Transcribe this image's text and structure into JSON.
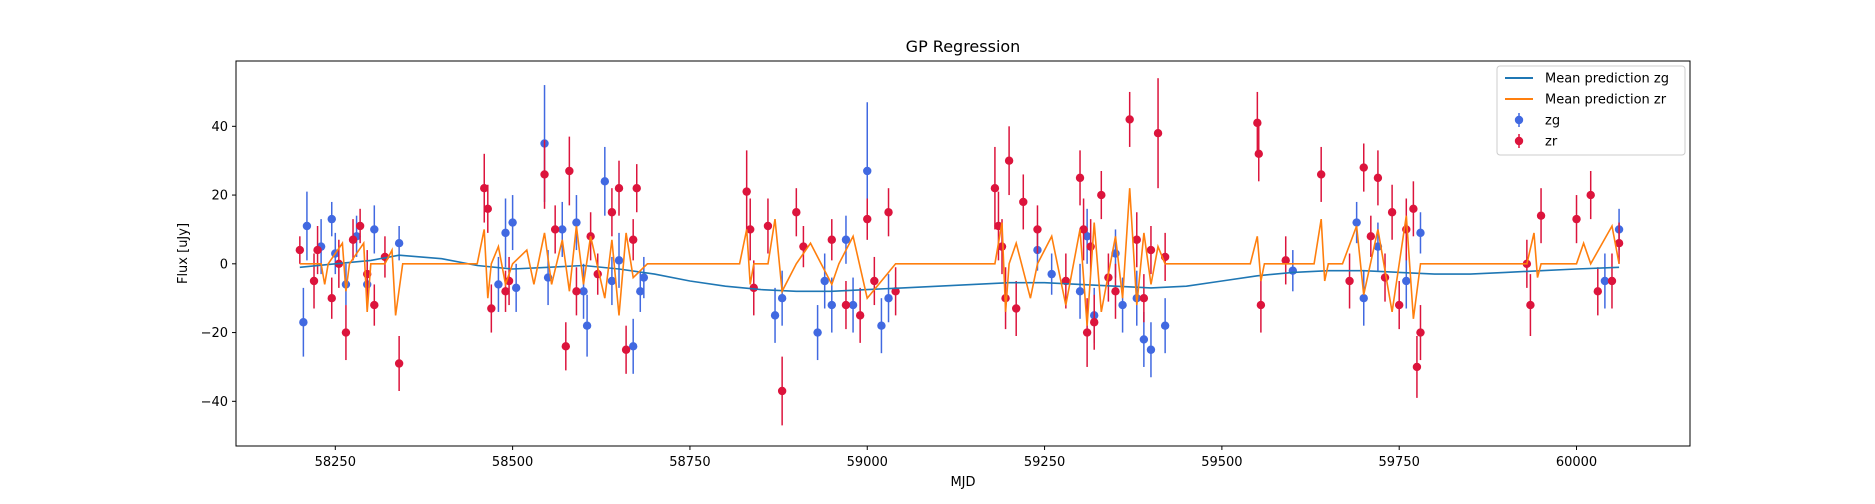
{
  "chart_data": {
    "type": "scatter",
    "title": "GP Regression",
    "xlabel": "MJD",
    "ylabel": "Flux [uJy]",
    "xlim": [
      58110,
      60160
    ],
    "ylim": [
      -53,
      59
    ],
    "xticks": [
      58250,
      58500,
      58750,
      59000,
      59250,
      59500,
      59750,
      60000
    ],
    "yticks": [
      -40,
      -20,
      0,
      20,
      40
    ],
    "grid": false,
    "legend_position": "upper right",
    "legend": [
      {
        "label": "Mean prediction zg",
        "kind": "line",
        "color": "#1f77b4"
      },
      {
        "label": "Mean prediction zr",
        "kind": "line",
        "color": "#ff7f0e"
      },
      {
        "label": "zg",
        "kind": "errorbar",
        "color": "#4169e1"
      },
      {
        "label": "zr",
        "kind": "errorbar",
        "color": "#dc143c"
      }
    ],
    "series": [
      {
        "name": "Mean prediction zg",
        "kind": "line",
        "color": "#1f77b4",
        "x": [
          58200,
          58250,
          58300,
          58340,
          58400,
          58450,
          58500,
          58550,
          58600,
          58650,
          58700,
          58750,
          58800,
          58850,
          58900,
          58950,
          59000,
          59050,
          59100,
          59150,
          59200,
          59250,
          59300,
          59350,
          59400,
          59450,
          59500,
          59550,
          59600,
          59650,
          59700,
          59750,
          59800,
          59850,
          59900,
          59950,
          60000,
          60060
        ],
        "y": [
          -1,
          0,
          1,
          2.5,
          1.5,
          -0.5,
          -1.5,
          -1,
          -0.5,
          -1.5,
          -3,
          -5,
          -6.5,
          -7.5,
          -8,
          -8,
          -7.5,
          -7,
          -6.5,
          -6,
          -5.5,
          -5.5,
          -6,
          -6.5,
          -7,
          -6.5,
          -5,
          -3.5,
          -2.5,
          -2,
          -2,
          -2.5,
          -3,
          -3,
          -2.5,
          -2,
          -1.5,
          -1
        ]
      },
      {
        "name": "Mean prediction zr",
        "kind": "line",
        "color": "#ff7f0e",
        "x": [
          58200,
          58230,
          58235,
          58240,
          58260,
          58265,
          58270,
          58290,
          58295,
          58300,
          58320,
          58330,
          58335,
          58345,
          58450,
          58460,
          58465,
          58470,
          58480,
          58490,
          58500,
          58520,
          58530,
          58545,
          58555,
          58570,
          58580,
          58590,
          58600,
          58610,
          58630,
          58640,
          58650,
          58660,
          58670,
          58690,
          58820,
          58830,
          58835,
          58840,
          58860,
          58870,
          58880,
          58900,
          58920,
          58950,
          58960,
          58980,
          59000,
          59040,
          59180,
          59190,
          59195,
          59200,
          59210,
          59230,
          59240,
          59260,
          59280,
          59300,
          59310,
          59320,
          59330,
          59350,
          59360,
          59370,
          59380,
          59390,
          59400,
          59410,
          59420,
          59540,
          59550,
          59555,
          59560,
          59630,
          59640,
          59645,
          59650,
          59670,
          59690,
          59700,
          59720,
          59740,
          59760,
          59770,
          59780,
          59930,
          59940,
          59945,
          59950,
          60000,
          60010,
          60020,
          60050,
          60060
        ],
        "y": [
          0,
          0,
          -6,
          0,
          6,
          -8,
          0,
          6,
          -14,
          0,
          0,
          4,
          -15,
          0,
          0,
          10,
          -10,
          0,
          5,
          -6,
          0,
          4,
          -6,
          9,
          -6,
          7,
          -8,
          11,
          -6,
          8,
          -10,
          7,
          -15,
          9,
          -4,
          0,
          0,
          10,
          -6,
          0,
          0,
          13,
          -8,
          0,
          6,
          -6,
          0,
          8,
          -10,
          0,
          0,
          12,
          -14,
          0,
          6,
          -10,
          0,
          8,
          -12,
          10,
          -18,
          12,
          -14,
          8,
          -10,
          22,
          -12,
          9,
          -6,
          5,
          0,
          0,
          8,
          -5,
          0,
          0,
          13,
          -5,
          0,
          0,
          11,
          -9,
          10,
          -14,
          14,
          -16,
          0,
          0,
          9,
          -4,
          0,
          0,
          6,
          0,
          11,
          0
        ]
      },
      {
        "name": "zg",
        "kind": "errorbar",
        "color": "#4169e1",
        "x": [
          58205,
          58210,
          58230,
          58245,
          58250,
          58265,
          58280,
          58295,
          58305,
          58340,
          58480,
          58490,
          58500,
          58505,
          58545,
          58550,
          58570,
          58590,
          58600,
          58605,
          58630,
          58640,
          58650,
          58670,
          58680,
          58685,
          58870,
          58880,
          58930,
          58940,
          58950,
          58970,
          58980,
          59000,
          59020,
          59030,
          59240,
          59260,
          59300,
          59310,
          59320,
          59350,
          59360,
          59380,
          59390,
          59400,
          59420,
          59600,
          59690,
          59700,
          59720,
          59760,
          59780,
          60040,
          60060
        ],
        "y": [
          -17,
          11,
          5,
          13,
          3,
          -6,
          8,
          -6,
          10,
          6,
          -6,
          9,
          12,
          -7,
          35,
          -4,
          10,
          12,
          -8,
          -18,
          24,
          -5,
          1,
          -24,
          -8,
          -4,
          -15,
          -10,
          -20,
          -5,
          -12,
          7,
          -12,
          27,
          -18,
          -10,
          4,
          -3,
          -8,
          8,
          -15,
          3,
          -12,
          -10,
          -22,
          -25,
          -18,
          -2,
          12,
          -10,
          5,
          -5,
          9,
          -5,
          10
        ],
        "yerr": [
          10,
          10,
          8,
          5,
          6,
          6,
          6,
          7,
          7,
          5,
          8,
          10,
          8,
          7,
          17,
          8,
          8,
          8,
          8,
          9,
          10,
          7,
          8,
          8,
          6,
          6,
          8,
          8,
          8,
          8,
          8,
          7,
          8,
          20,
          8,
          7,
          6,
          6,
          8,
          8,
          8,
          7,
          8,
          8,
          8,
          8,
          8,
          6,
          6,
          8,
          7,
          8,
          6,
          8,
          6
        ]
      },
      {
        "name": "zr",
        "kind": "errorbar",
        "color": "#dc143c",
        "x": [
          58200,
          58220,
          58225,
          58245,
          58255,
          58265,
          58275,
          58285,
          58295,
          58305,
          58320,
          58340,
          58460,
          58465,
          58470,
          58490,
          58495,
          58545,
          58560,
          58575,
          58580,
          58590,
          58610,
          58620,
          58640,
          58650,
          58660,
          58670,
          58675,
          58830,
          58835,
          58840,
          58860,
          58880,
          58900,
          58910,
          58950,
          58970,
          58990,
          59000,
          59010,
          59030,
          59040,
          59180,
          59185,
          59190,
          59195,
          59200,
          59210,
          59220,
          59240,
          59280,
          59300,
          59305,
          59310,
          59315,
          59320,
          59330,
          59340,
          59350,
          59370,
          59380,
          59390,
          59400,
          59410,
          59420,
          59550,
          59552,
          59555,
          59590,
          59640,
          59680,
          59700,
          59710,
          59720,
          59730,
          59740,
          59750,
          59760,
          59770,
          59775,
          59780,
          59930,
          59935,
          59950,
          60000,
          60020,
          60030,
          60050,
          60060
        ],
        "y": [
          4,
          -5,
          4,
          -10,
          0,
          -20,
          7,
          11,
          -3,
          -12,
          2,
          -29,
          22,
          16,
          -13,
          -8,
          -5,
          26,
          10,
          -24,
          27,
          -8,
          8,
          -3,
          15,
          22,
          -25,
          7,
          22,
          21,
          10,
          -7,
          11,
          -37,
          15,
          5,
          7,
          -12,
          -15,
          13,
          -5,
          15,
          -8,
          22,
          11,
          5,
          -10,
          30,
          -13,
          18,
          10,
          -5,
          25,
          10,
          -20,
          5,
          -17,
          20,
          -4,
          -8,
          42,
          7,
          -10,
          4,
          38,
          2,
          41,
          32,
          -12,
          1,
          26,
          -5,
          28,
          8,
          25,
          -4,
          15,
          -12,
          10,
          16,
          -30,
          -20,
          0,
          -12,
          14,
          13,
          20,
          -8,
          -5,
          6
        ],
        "yerr": [
          4,
          8,
          7,
          6,
          7,
          8,
          6,
          5,
          7,
          6,
          6,
          8,
          10,
          7,
          7,
          6,
          7,
          10,
          7,
          7,
          10,
          7,
          7,
          6,
          7,
          8,
          7,
          6,
          7,
          12,
          9,
          8,
          8,
          10,
          7,
          6,
          6,
          7,
          8,
          6,
          7,
          7,
          7,
          12,
          10,
          8,
          9,
          10,
          8,
          8,
          7,
          8,
          8,
          9,
          10,
          8,
          8,
          7,
          7,
          8,
          8,
          8,
          7,
          7,
          16,
          7,
          9,
          8,
          8,
          7,
          8,
          8,
          7,
          6,
          8,
          7,
          8,
          7,
          9,
          8,
          9,
          8,
          7,
          9,
          8,
          7,
          7,
          7,
          8,
          6
        ]
      }
    ]
  }
}
